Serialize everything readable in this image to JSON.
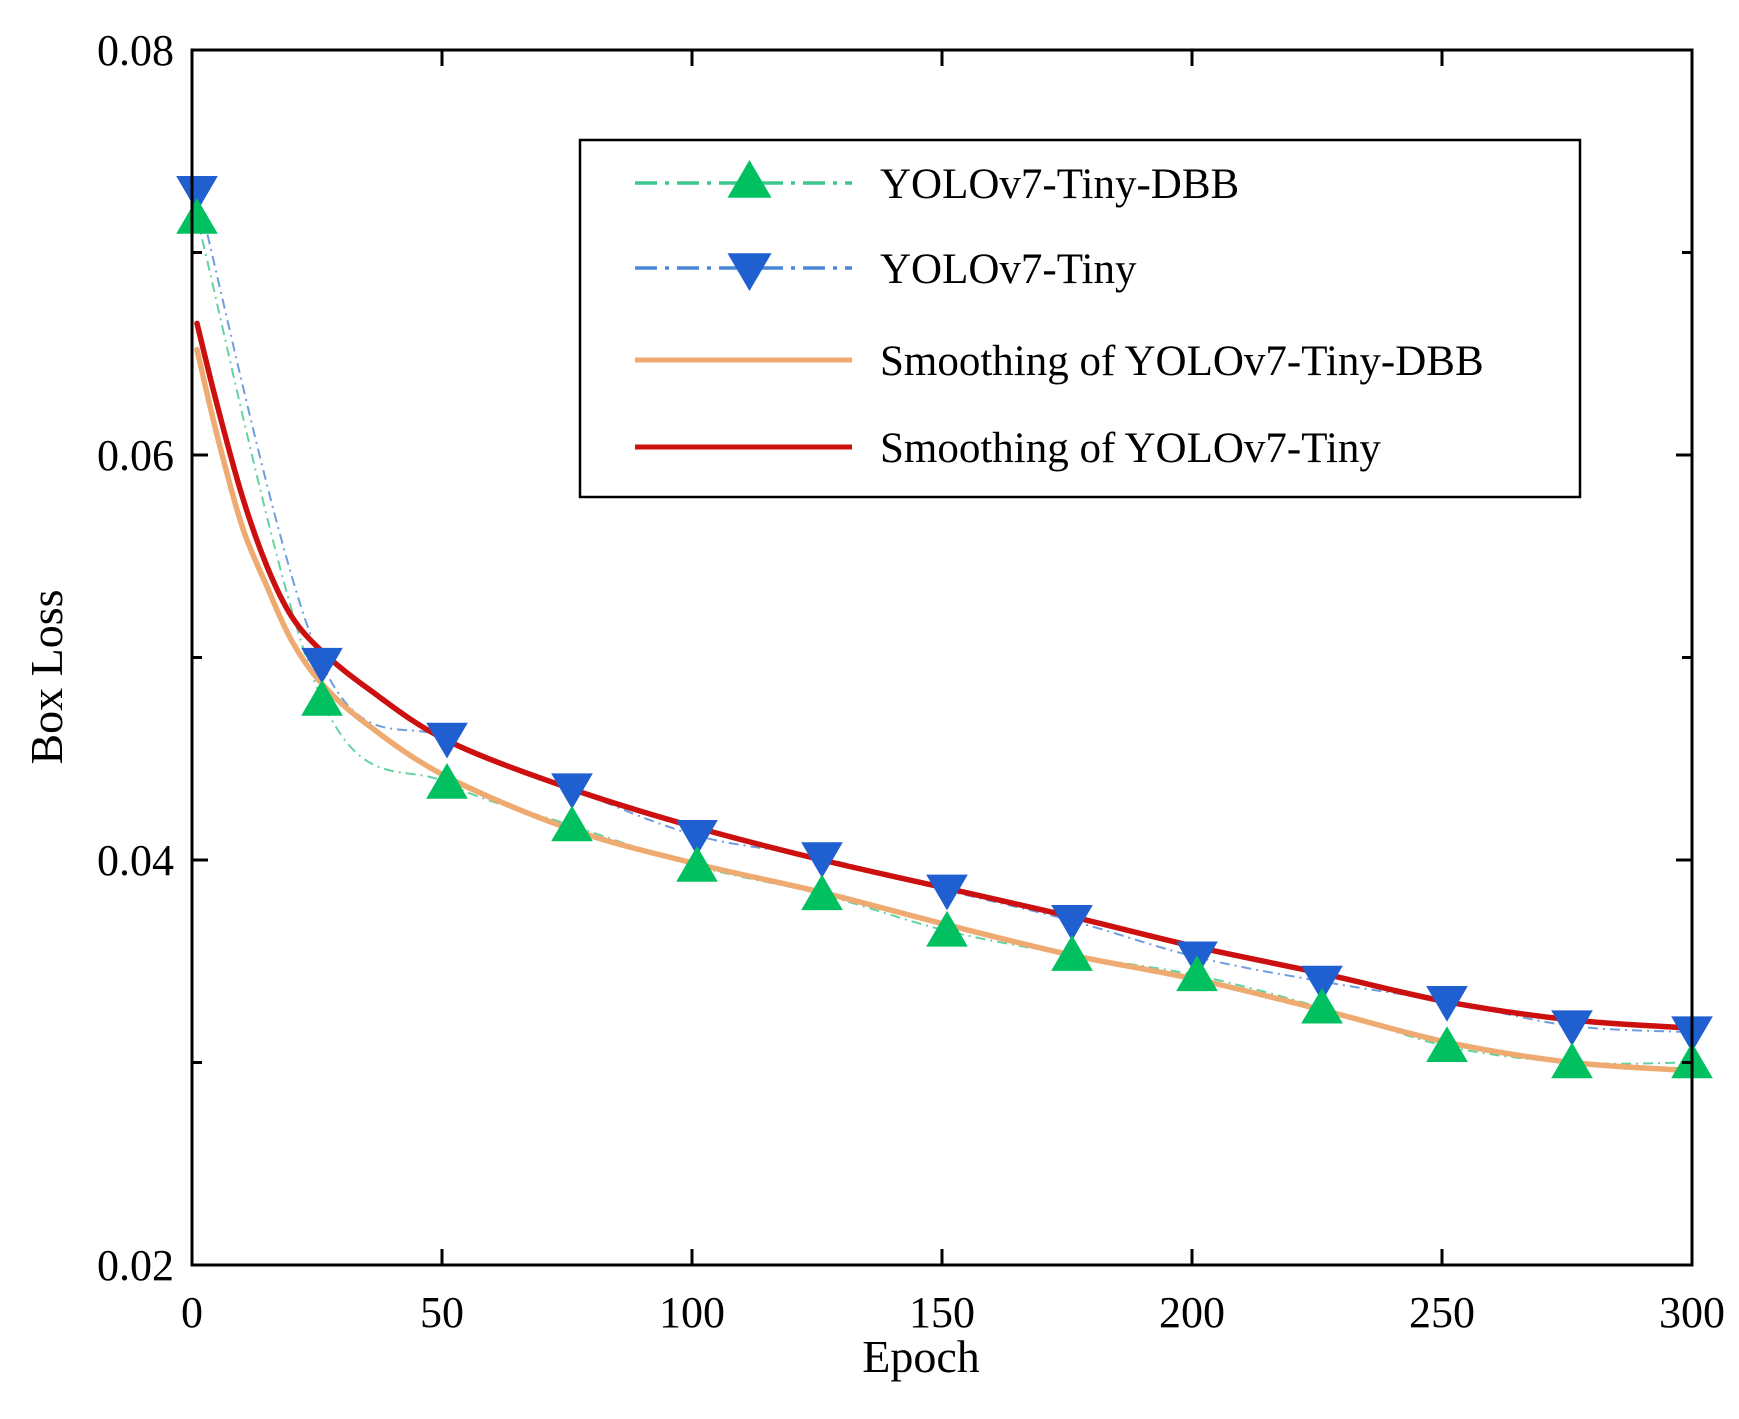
{
  "chart_data": {
    "type": "line",
    "title": "",
    "xlabel": "Epoch",
    "ylabel": "Box Loss",
    "xlim": [
      0,
      300
    ],
    "ylim": [
      0.02,
      0.08
    ],
    "x_ticks": [
      0,
      50,
      100,
      150,
      200,
      250,
      300
    ],
    "x_tick_labels": [
      "0",
      "50",
      "100",
      "150",
      "200",
      "250",
      "300"
    ],
    "y_ticks": [
      0.02,
      0.04,
      0.06,
      0.08
    ],
    "y_tick_labels": [
      "0.02",
      "0.04",
      "0.06",
      "0.08"
    ],
    "y_minor_ticks": [
      0.03,
      0.05,
      0.07
    ],
    "legend_position": "top-right",
    "series": [
      {
        "name": "YOLOv7-Tiny-DBB",
        "style": "dash-dot-markers",
        "marker": "triangle-up",
        "color": "#00c060",
        "line_color": "#3cc88a",
        "x": [
          1,
          26,
          51,
          76,
          101,
          126,
          151,
          176,
          201,
          226,
          251,
          276,
          300
        ],
        "values": [
          0.0717,
          0.0479,
          0.0438,
          0.0417,
          0.0397,
          0.0383,
          0.0365,
          0.0353,
          0.0343,
          0.0327,
          0.0308,
          0.03,
          0.03
        ]
      },
      {
        "name": "YOLOv7-Tiny",
        "style": "dash-dot-markers",
        "marker": "triangle-down",
        "color": "#1f5fd0",
        "line_color": "#4a86d8",
        "x": [
          1,
          26,
          51,
          76,
          101,
          126,
          151,
          176,
          201,
          226,
          251,
          276,
          300
        ],
        "values": [
          0.073,
          0.0497,
          0.046,
          0.0435,
          0.0412,
          0.0401,
          0.0385,
          0.037,
          0.0352,
          0.034,
          0.033,
          0.0318,
          0.0315
        ]
      },
      {
        "name": "Smoothing of YOLOv7-Tiny-DBB",
        "style": "solid",
        "color": "#eeaa70",
        "x": [
          1,
          5,
          10,
          15,
          20,
          26,
          35,
          51,
          76,
          101,
          126,
          151,
          176,
          201,
          226,
          251,
          276,
          300
        ],
        "values": [
          0.0652,
          0.061,
          0.0565,
          0.0535,
          0.0508,
          0.0487,
          0.0467,
          0.0441,
          0.0415,
          0.0398,
          0.0384,
          0.0368,
          0.0353,
          0.0341,
          0.0326,
          0.031,
          0.03,
          0.0296
        ]
      },
      {
        "name": "Smoothing of YOLOv7-Tiny",
        "style": "solid",
        "color": "#cc1010",
        "x": [
          1,
          5,
          10,
          15,
          20,
          26,
          35,
          51,
          76,
          101,
          126,
          151,
          176,
          201,
          226,
          251,
          276,
          300
        ],
        "values": [
          0.0665,
          0.0625,
          0.058,
          0.0545,
          0.052,
          0.0503,
          0.0485,
          0.0459,
          0.0435,
          0.0416,
          0.04,
          0.0386,
          0.0372,
          0.0357,
          0.0344,
          0.033,
          0.0321,
          0.0317
        ]
      }
    ]
  }
}
